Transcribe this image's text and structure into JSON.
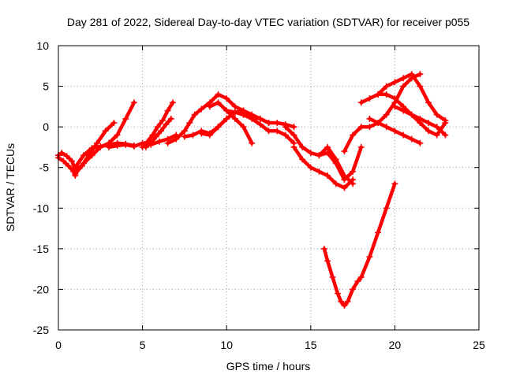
{
  "chart_data": {
    "type": "scatter",
    "title": "Day 281 of 2022, Sidereal Day-to-day VTEC variation (SDTVAR) for receiver p055",
    "xlabel": "GPS time / hours",
    "ylabel": "SDTVAR / TECUs",
    "xlim": [
      0,
      25
    ],
    "ylim": [
      -25,
      10
    ],
    "xticks": [
      "0",
      "5",
      "10",
      "15",
      "20",
      "25"
    ],
    "yticks": [
      "-25",
      "-20",
      "-15",
      "-10",
      "-5",
      "0",
      "5",
      "10"
    ],
    "grid": true,
    "marker": "+",
    "color": "#ff0000",
    "series": [
      {
        "x": [
          0.0,
          0.3,
          0.6,
          0.9,
          1.0
        ],
        "y": [
          -3.8,
          -4.2,
          -4.8,
          -5.5,
          -6.0
        ]
      },
      {
        "x": [
          0.0,
          0.2,
          0.5,
          0.8,
          1.0
        ],
        "y": [
          -3.5,
          -3.2,
          -3.6,
          -4.2,
          -5.2
        ]
      },
      {
        "x": [
          1.0,
          1.4,
          1.8,
          2.3,
          2.8,
          3.3
        ],
        "y": [
          -5.8,
          -4.8,
          -3.5,
          -2.0,
          -0.5,
          0.5
        ]
      },
      {
        "x": [
          1.0,
          1.5,
          2.0,
          2.5,
          3.0,
          3.5,
          4.0,
          4.5
        ],
        "y": [
          -5.5,
          -4.5,
          -3.5,
          -2.5,
          -2.0,
          -1.0,
          1.0,
          3.0
        ]
      },
      {
        "x": [
          1.0,
          1.5,
          2.0,
          2.5,
          3.0,
          3.5,
          4.0,
          4.5
        ],
        "y": [
          -5.0,
          -3.5,
          -2.6,
          -2.4,
          -2.2,
          -2.0,
          -2.1,
          -2.3
        ]
      },
      {
        "x": [
          3.0,
          3.5,
          4.0,
          4.5,
          5.0,
          5.5,
          6.0,
          6.5,
          7.0
        ],
        "y": [
          -2.5,
          -2.3,
          -2.2,
          -2.4,
          -2.0,
          -2.2,
          -1.8,
          -1.5,
          -1.0
        ]
      },
      {
        "x": [
          5.0,
          5.3,
          5.6,
          5.9,
          6.2,
          6.5,
          6.8
        ],
        "y": [
          -2.5,
          -1.8,
          -1.0,
          0.0,
          0.8,
          2.0,
          3.0
        ]
      },
      {
        "x": [
          5.2,
          5.5,
          5.8,
          6.1,
          6.4,
          6.7
        ],
        "y": [
          -2.5,
          -2.0,
          -1.2,
          -0.5,
          0.3,
          1.0
        ]
      },
      {
        "x": [
          6.5,
          7.0,
          7.5,
          7.8,
          8.1,
          8.5,
          9.0,
          9.5,
          10.0,
          10.5,
          11.0
        ],
        "y": [
          -2.0,
          -1.5,
          -0.5,
          0.5,
          1.5,
          2.2,
          3.0,
          4.0,
          3.5,
          2.5,
          2.0
        ]
      },
      {
        "x": [
          7.5,
          8.0,
          8.5,
          9.0,
          9.5,
          10.0
        ],
        "y": [
          -1.2,
          -1.0,
          -0.5,
          -0.8,
          0.0,
          1.0
        ]
      },
      {
        "x": [
          8.5,
          9.0,
          9.5,
          10.0,
          10.5,
          11.0,
          11.5,
          12.0,
          12.5
        ],
        "y": [
          -0.8,
          -1.0,
          0.0,
          1.0,
          1.8,
          2.0,
          1.5,
          1.0,
          0.5
        ]
      },
      {
        "x": [
          9.0,
          9.5,
          10.0,
          10.5,
          11.0,
          11.5
        ],
        "y": [
          2.5,
          3.0,
          2.0,
          1.0,
          0.0,
          -2.0
        ]
      },
      {
        "x": [
          10.0,
          10.5,
          11.0,
          11.5,
          12.0,
          12.5,
          13.0,
          13.5,
          14.0
        ],
        "y": [
          2.0,
          1.8,
          1.5,
          1.2,
          1.0,
          0.5,
          0.5,
          0.3,
          0.0
        ]
      },
      {
        "x": [
          11.0,
          11.5,
          12.0,
          12.5,
          13.0,
          13.5,
          14.0
        ],
        "y": [
          1.5,
          1.0,
          0.3,
          -0.5,
          -0.5,
          -1.0,
          -2.0
        ]
      },
      {
        "x": [
          13.5,
          14.0,
          14.5,
          15.0,
          15.5,
          16.0,
          16.5,
          17.0,
          17.5,
          18.0
        ],
        "y": [
          0.0,
          -1.0,
          -2.5,
          -3.2,
          -3.5,
          -3.2,
          -4.5,
          -6.5,
          -5.5,
          -2.5
        ]
      },
      {
        "x": [
          14.0,
          14.5,
          15.0,
          15.5,
          16.0,
          16.5,
          17.0,
          17.5
        ],
        "y": [
          -2.5,
          -4.0,
          -5.0,
          -5.5,
          -6.0,
          -7.0,
          -7.5,
          -6.5
        ]
      },
      {
        "x": [
          15.5,
          16.0,
          16.5,
          17.0,
          17.5
        ],
        "y": [
          -3.5,
          -2.5,
          -4.0,
          -6.0,
          -7.0
        ]
      },
      {
        "x": [
          17.0,
          17.5,
          18.0,
          18.5,
          19.0,
          19.5,
          20.0,
          20.5,
          21.0,
          21.5
        ],
        "y": [
          -3.0,
          -1.0,
          0.0,
          0.0,
          0.5,
          1.5,
          3.0,
          5.0,
          6.0,
          6.5
        ]
      },
      {
        "x": [
          18.0,
          18.5,
          19.0,
          19.5,
          20.0,
          20.5,
          21.0,
          21.5,
          22.0,
          22.5,
          23.0
        ],
        "y": [
          3.0,
          3.5,
          4.0,
          4.0,
          3.5,
          2.5,
          1.5,
          1.0,
          0.5,
          0.0,
          -1.0
        ]
      },
      {
        "x": [
          19.0,
          19.5,
          20.0,
          20.5,
          21.0,
          21.5,
          22.0,
          22.5,
          23.0
        ],
        "y": [
          4.0,
          5.0,
          5.5,
          6.0,
          6.5,
          5.0,
          3.0,
          1.5,
          0.8
        ]
      },
      {
        "x": [
          18.5,
          19.0,
          19.5,
          20.0,
          20.5,
          21.0,
          21.5
        ],
        "y": [
          1.0,
          0.5,
          0.0,
          -0.5,
          -1.0,
          -1.5,
          -2.0
        ]
      },
      {
        "x": [
          20.0,
          20.5,
          21.0,
          21.5,
          22.0,
          22.5,
          23.0
        ],
        "y": [
          2.5,
          2.0,
          1.5,
          0.5,
          -0.5,
          -1.0,
          0.5
        ]
      },
      {
        "x": [
          15.8,
          16.0,
          16.3,
          16.6,
          16.8,
          17.0,
          17.2,
          17.5,
          17.8,
          18.0,
          18.5,
          19.0,
          19.5,
          20.0
        ],
        "y": [
          -15.0,
          -16.5,
          -18.5,
          -20.5,
          -21.5,
          -22.0,
          -21.5,
          -20.0,
          -19.0,
          -18.5,
          -16.0,
          -13.0,
          -10.0,
          -7.0
        ]
      }
    ]
  }
}
